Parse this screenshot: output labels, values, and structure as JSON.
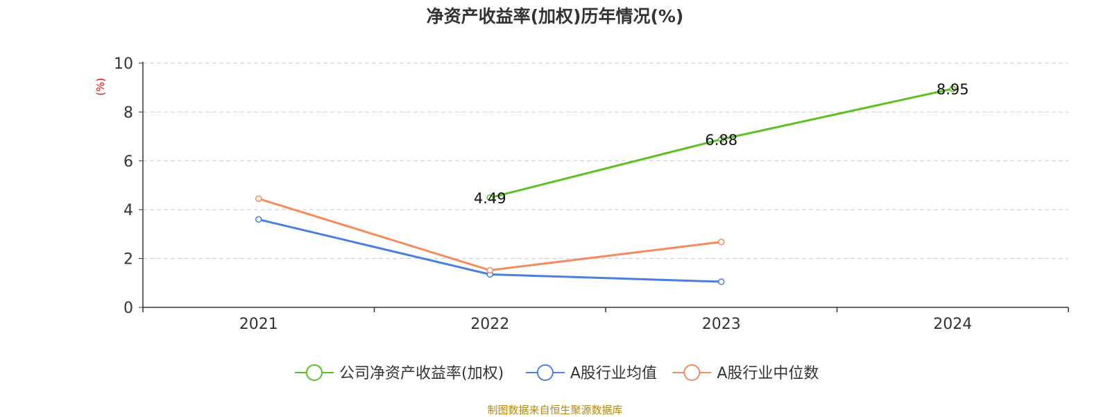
{
  "chart_data": {
    "type": "line",
    "title": "净资产收益率(加权)历年情况(%)",
    "ylabel": "(%)",
    "categories": [
      "2021",
      "2022",
      "2023",
      "2024"
    ],
    "ylim": [
      0,
      10
    ],
    "yticks": [
      0,
      2,
      4,
      6,
      8,
      10
    ],
    "grid": true,
    "legend_position": "bottom",
    "series": [
      {
        "name": "公司净资产收益率(加权)",
        "color": "#5ac021",
        "values": [
          null,
          4.49,
          6.88,
          8.95
        ],
        "labels": [
          "",
          "4.49",
          "6.88",
          "8.95"
        ]
      },
      {
        "name": "A股行业均值",
        "color": "#4a7fe0",
        "values": [
          3.6,
          1.35,
          1.05,
          null
        ],
        "labels": [
          "",
          "",
          "",
          ""
        ]
      },
      {
        "name": "A股行业中位数",
        "color": "#f7895a",
        "values": [
          4.45,
          1.52,
          2.68,
          null
        ],
        "labels": [
          "",
          "",
          "",
          ""
        ]
      }
    ]
  },
  "footer": {
    "source": "制图数据来自恒生聚源数据库"
  }
}
